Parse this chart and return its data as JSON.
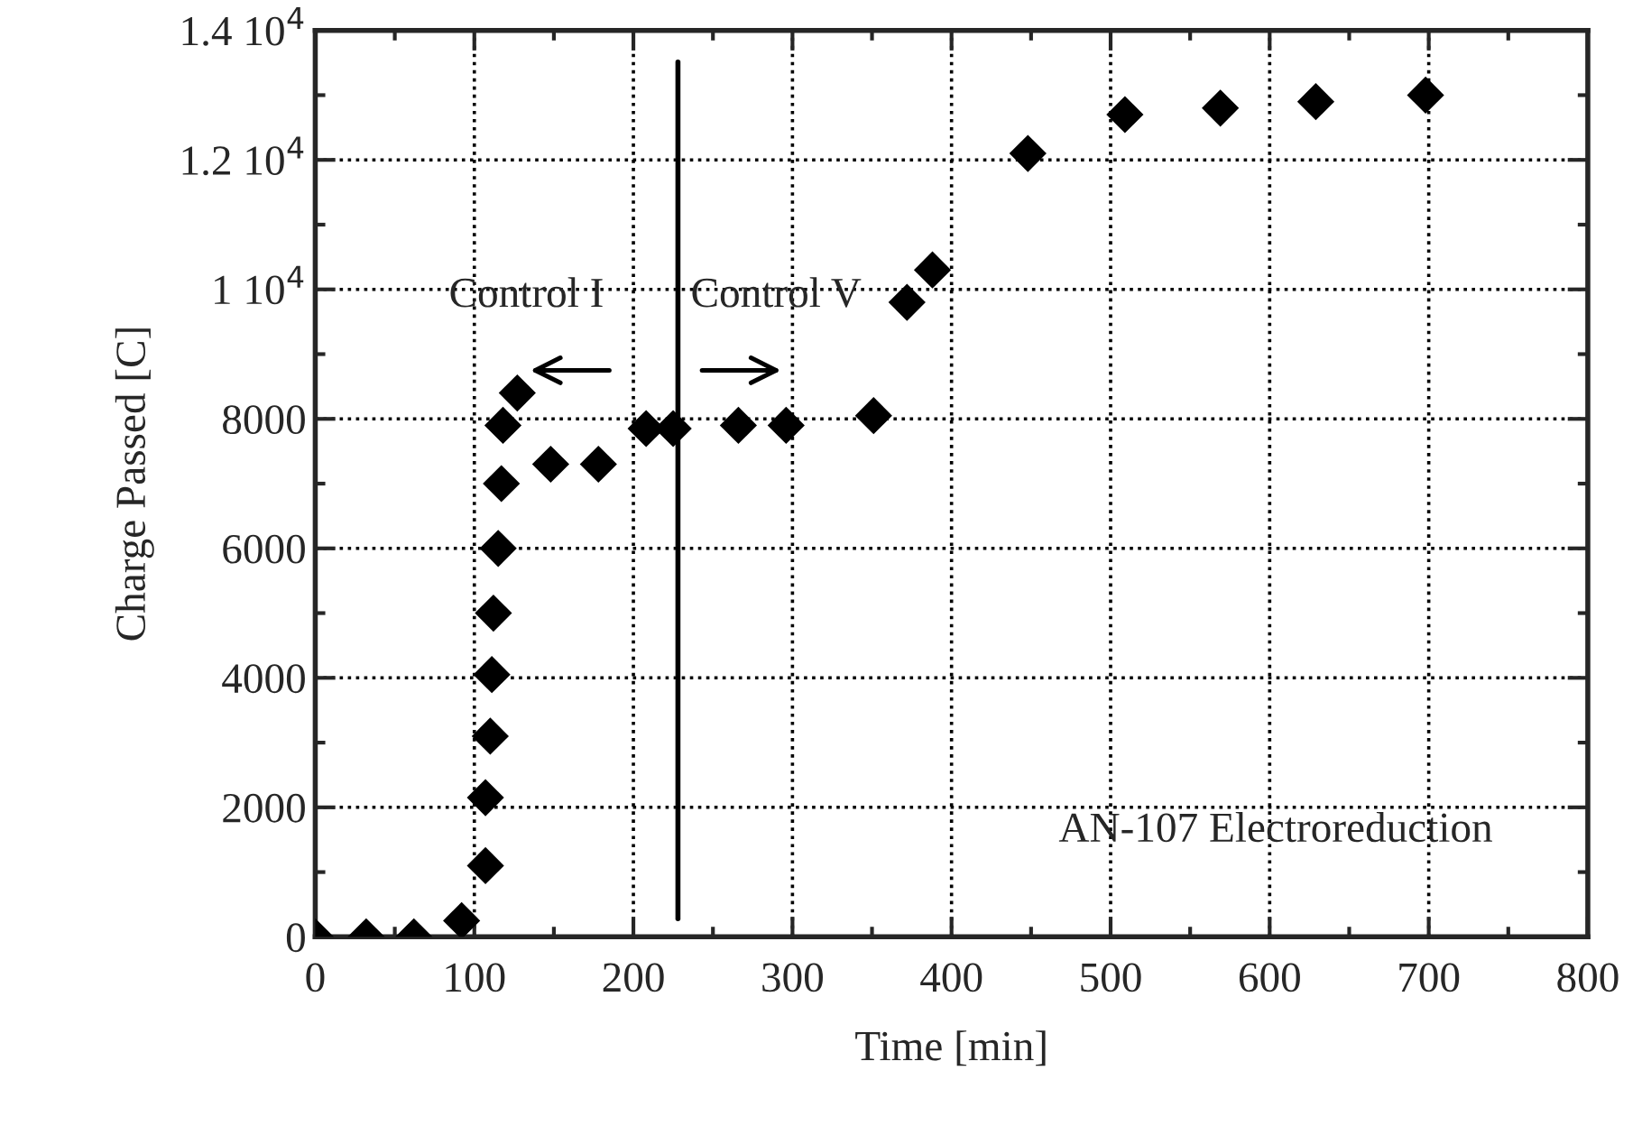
{
  "chart_data": {
    "type": "scatter",
    "xlabel": "Time [min]",
    "ylabel": "Charge Passed [C]",
    "series": [
      {
        "color": "#000000",
        "x": [
          0,
          32,
          62,
          92,
          107,
          107,
          110,
          111,
          112,
          115,
          117,
          118,
          127,
          148,
          178,
          208,
          225,
          266,
          296,
          351,
          372,
          388,
          448,
          509,
          569,
          629,
          698
        ],
        "values": [
          0,
          0,
          0,
          250,
          1100,
          2150,
          3100,
          4050,
          5000,
          6000,
          7000,
          7900,
          8400,
          7300,
          7300,
          7850,
          7850,
          7900,
          7900,
          8050,
          9800,
          10300,
          12100,
          12700,
          12800,
          12900,
          13000
        ]
      }
    ],
    "xlim": [
      0,
      800
    ],
    "xticks": [
      0,
      100,
      200,
      300,
      400,
      500,
      600,
      700,
      800
    ],
    "ylim": [
      0,
      14000
    ],
    "yticks": [
      0,
      2000,
      4000,
      6000,
      8000,
      {
        "value": 10000,
        "label": "1 10$^{4}$"
      },
      {
        "value": 12000,
        "label": "1.2 10$^{4}$"
      },
      {
        "value": 14000,
        "label": "1.4 10$^{4}$"
      }
    ],
    "grid": true,
    "marker": "diamond",
    "ref_lines": [
      {
        "axis": "x",
        "value": 228,
        "color": "#000000"
      }
    ],
    "annotations": [
      "Control I",
      "Control V",
      "AN-107 Electroreduction"
    ]
  }
}
